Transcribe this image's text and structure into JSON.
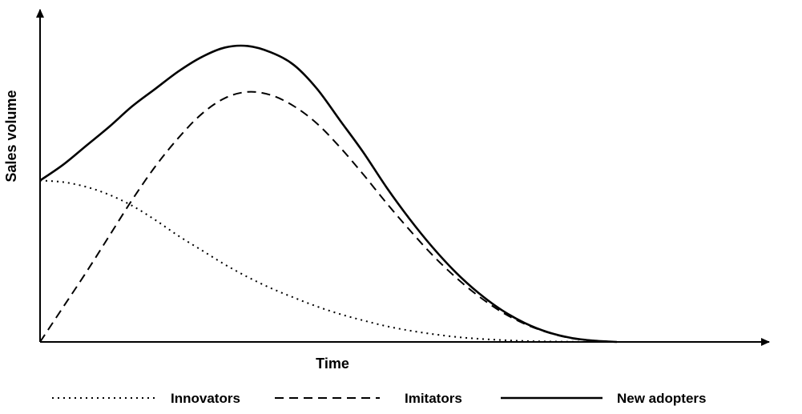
{
  "chart_data": {
    "type": "line",
    "title": "",
    "xlabel": "Time",
    "ylabel": "Sales volume",
    "grid": false,
    "legend_position": "bottom",
    "x": [
      0,
      0.04,
      0.08,
      0.12,
      0.16,
      0.2,
      0.24,
      0.28,
      0.32,
      0.36,
      0.4,
      0.44,
      0.48,
      0.52,
      0.56,
      0.6,
      0.64,
      0.68,
      0.72,
      0.76,
      0.8,
      0.84,
      0.88,
      0.92,
      0.96,
      1.0
    ],
    "xlim": [
      0,
      1.25
    ],
    "ylim": [
      0,
      1.05
    ],
    "series": [
      {
        "name": "Innovators",
        "style": "dotted",
        "values": [
          0.51,
          0.505,
          0.49,
          0.465,
          0.43,
          0.385,
          0.335,
          0.29,
          0.245,
          0.205,
          0.17,
          0.14,
          0.112,
          0.088,
          0.068,
          0.05,
          0.036,
          0.025,
          0.016,
          0.01,
          0.006,
          0.003,
          0.0015,
          0.0007,
          0.0002,
          0.0
        ]
      },
      {
        "name": "Imitators",
        "style": "dashed",
        "values": [
          0.0,
          0.11,
          0.22,
          0.335,
          0.45,
          0.555,
          0.645,
          0.72,
          0.77,
          0.79,
          0.78,
          0.745,
          0.69,
          0.615,
          0.53,
          0.44,
          0.355,
          0.275,
          0.205,
          0.145,
          0.095,
          0.057,
          0.03,
          0.012,
          0.004,
          0.0
        ]
      },
      {
        "name": "New adopters",
        "style": "solid",
        "values": [
          0.51,
          0.56,
          0.62,
          0.68,
          0.745,
          0.8,
          0.855,
          0.9,
          0.93,
          0.935,
          0.915,
          0.875,
          0.8,
          0.7,
          0.6,
          0.49,
          0.39,
          0.3,
          0.221,
          0.155,
          0.101,
          0.06,
          0.031,
          0.013,
          0.004,
          0.0
        ]
      }
    ]
  }
}
